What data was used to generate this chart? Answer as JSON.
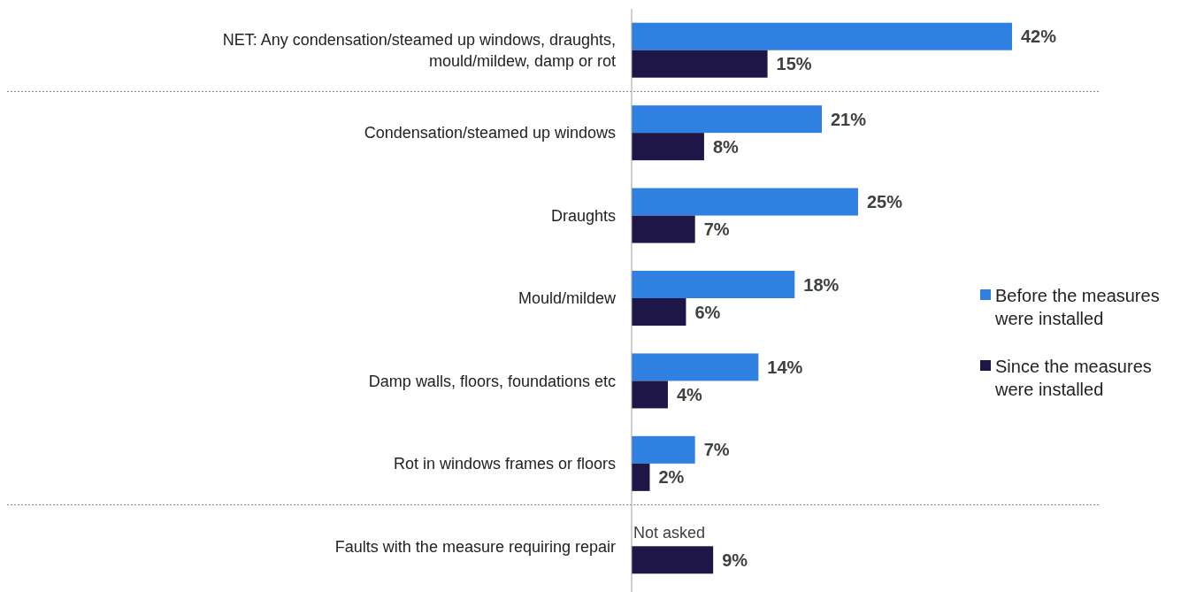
{
  "chart_data": {
    "type": "bar",
    "orientation": "horizontal",
    "categories": [
      "NET: Any condensation/steamed up windows, draughts, mould/mildew, damp or rot",
      "Condensation/steamed up windows",
      "Draughts",
      "Mould/mildew",
      "Damp walls, floors, foundations etc",
      "Rot in windows frames or floors",
      "Faults with the measure requiring repair"
    ],
    "series": [
      {
        "name": "Before the measures were installed",
        "color": "#2f80e0",
        "values": [
          42,
          21,
          25,
          18,
          14,
          7,
          null
        ],
        "value_labels": [
          "42%",
          "21%",
          "25%",
          "18%",
          "14%",
          "7%",
          "Not asked"
        ]
      },
      {
        "name": "Since the measures were installed",
        "color": "#1e1646",
        "values": [
          15,
          8,
          7,
          6,
          4,
          2,
          9
        ],
        "value_labels": [
          "15%",
          "8%",
          "7%",
          "6%",
          "4%",
          "2%",
          "9%"
        ]
      }
    ],
    "legend": "right"
  }
}
